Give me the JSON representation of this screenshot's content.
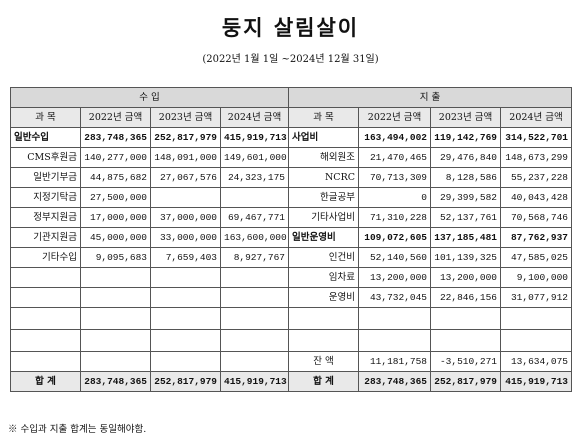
{
  "title": "둥지 살림살이",
  "period": "(2022년 1월 1일 ~2024년 12월 31일)",
  "sections": {
    "income": "수  입",
    "expense": "지  출"
  },
  "columns": {
    "item": "과  목",
    "y2022": "2022년 금액",
    "y2023": "2023년 금액",
    "y2024": "2024년 금액"
  },
  "income_rows": [
    {
      "label": "일반수입",
      "v2022": "283,748,365",
      "v2023": "252,817,979",
      "v2024": "415,919,713"
    },
    {
      "label": "CMS후원금",
      "v2022": "140,277,000",
      "v2023": "148,091,000",
      "v2024": "149,601,000"
    },
    {
      "label": "일반기부금",
      "v2022": "44,875,682",
      "v2023": "27,067,576",
      "v2024": "24,323,175"
    },
    {
      "label": "지정기탁금",
      "v2022": "27,500,000",
      "v2023": "",
      "v2024": ""
    },
    {
      "label": "정부지원금",
      "v2022": "17,000,000",
      "v2023": "37,000,000",
      "v2024": "69,467,771"
    },
    {
      "label": "기관지원금",
      "v2022": "45,000,000",
      "v2023": "33,000,000",
      "v2024": "163,600,000"
    },
    {
      "label": "기타수입",
      "v2022": "9,095,683",
      "v2023": "7,659,403",
      "v2024": "8,927,767"
    }
  ],
  "expense_rows": [
    {
      "label": "사업비",
      "v2022": "163,494,002",
      "v2023": "119,142,769",
      "v2024": "314,522,701"
    },
    {
      "label": "해외원조",
      "v2022": "21,470,465",
      "v2023": "29,476,840",
      "v2024": "148,673,299"
    },
    {
      "label": "NCRC",
      "v2022": "70,713,309",
      "v2023": "8,128,586",
      "v2024": "55,237,228"
    },
    {
      "label": "한글공부",
      "v2022": "0",
      "v2023": "29,399,582",
      "v2024": "40,043,428"
    },
    {
      "label": "기타사업비",
      "v2022": "71,310,228",
      "v2023": "52,137,761",
      "v2024": "70,568,746"
    },
    {
      "label": "일반운영비",
      "v2022": "109,072,605",
      "v2023": "137,185,481",
      "v2024": "87,762,937"
    },
    {
      "label": "인건비",
      "v2022": "52,140,560",
      "v2023": "101,139,325",
      "v2024": "47,585,025"
    },
    {
      "label": "임차료",
      "v2022": "13,200,000",
      "v2023": "13,200,000",
      "v2024": "9,100,000"
    },
    {
      "label": "운영비",
      "v2022": "43,732,045",
      "v2023": "22,846,156",
      "v2024": "31,077,912"
    }
  ],
  "balance": {
    "label": "잔  액",
    "v2022": "11,181,758",
    "v2023": "-3,510,271",
    "v2024": "13,634,075"
  },
  "totals": {
    "label": "합  계",
    "income": {
      "v2022": "283,748,365",
      "v2023": "252,817,979",
      "v2024": "415,919,713"
    },
    "expense": {
      "v2022": "283,748,365",
      "v2023": "252,817,979",
      "v2024": "415,919,713"
    }
  },
  "footnote": "※ 수입과 지출 합계는 동일해야함."
}
